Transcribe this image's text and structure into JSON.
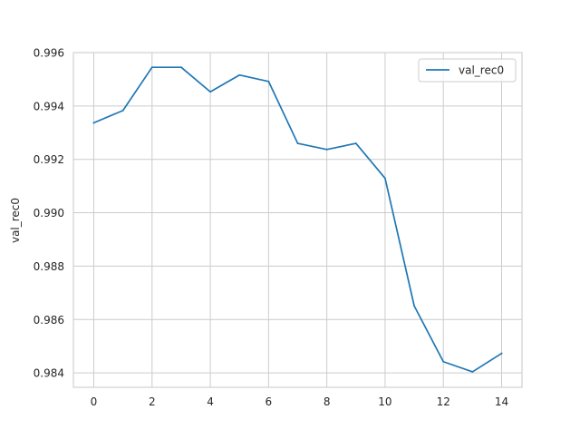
{
  "chart_data": {
    "type": "line",
    "title": "",
    "xlabel": "",
    "ylabel": "val_rec0",
    "x": [
      0,
      1,
      2,
      3,
      4,
      5,
      6,
      7,
      8,
      9,
      10,
      11,
      12,
      13,
      14
    ],
    "series": [
      {
        "name": "val_rec0",
        "color": "#1f77b4",
        "values": [
          0.99337,
          0.99383,
          0.99545,
          0.99545,
          0.99453,
          0.99516,
          0.99492,
          0.9926,
          0.99237,
          0.9926,
          0.99129,
          0.98651,
          0.98442,
          0.98404,
          0.98473
        ]
      }
    ],
    "xlim": [
      -0.7,
      14.7
    ],
    "ylim": [
      0.98346,
      0.996
    ],
    "xticks": [
      0,
      2,
      4,
      6,
      8,
      10,
      12,
      14
    ],
    "xtick_labels": [
      "0",
      "2",
      "4",
      "6",
      "8",
      "10",
      "12",
      "14"
    ],
    "yticks": [
      0.984,
      0.986,
      0.988,
      0.99,
      0.992,
      0.994,
      0.996
    ],
    "ytick_labels": [
      "0.984",
      "0.986",
      "0.988",
      "0.990",
      "0.992",
      "0.994",
      "0.996"
    ],
    "grid": true,
    "legend": "top-right"
  },
  "colors": {
    "line": "#1f77b4",
    "grid": "#cccccc",
    "spine": "#cccccc",
    "text": "#262626"
  }
}
